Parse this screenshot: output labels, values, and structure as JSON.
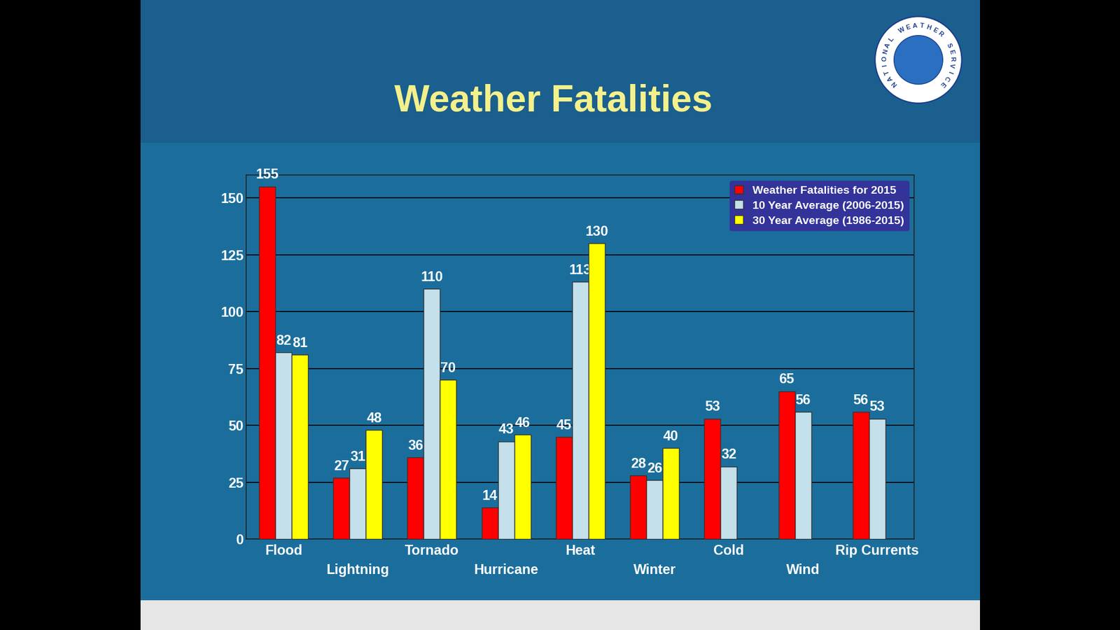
{
  "chart_data": {
    "type": "bar",
    "title": "Weather Fatalities",
    "categories": [
      "Flood",
      "Lightning",
      "Tornado",
      "Hurricane",
      "Heat",
      "Winter",
      "Cold",
      "Wind",
      "Rip Currents"
    ],
    "series": [
      {
        "name": "Weather Fatalities for 2015",
        "color": "#ff0000",
        "values": [
          155,
          27,
          36,
          14,
          45,
          28,
          53,
          65,
          56
        ]
      },
      {
        "name": "10 Year Average (2006-2015)",
        "color": "#c4e0ea",
        "values": [
          82,
          31,
          110,
          43,
          113,
          26,
          32,
          56,
          53
        ]
      },
      {
        "name": "30 Year Average (1986-2015)",
        "color": "#ffff00",
        "values": [
          81,
          48,
          70,
          46,
          130,
          40,
          null,
          null,
          null
        ]
      }
    ],
    "ylim": [
      0,
      160
    ],
    "yticks": [
      0,
      25,
      50,
      75,
      100,
      125,
      150
    ],
    "grid": true,
    "legend": "upper right",
    "data_labels": true
  },
  "logo": {
    "text": "NATIONAL WEATHER SERVICE"
  }
}
